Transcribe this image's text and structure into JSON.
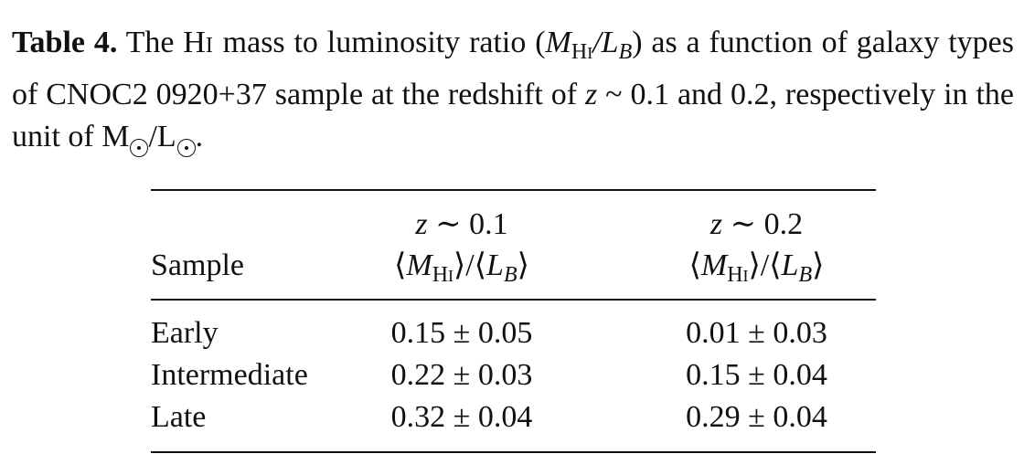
{
  "caption": {
    "label": "Table 4.",
    "part1": "The H",
    "hi_roman": "I",
    "part2": "mass to luminosity ratio (",
    "part3": ") as a function of galaxy types of CNOC2 0920+37 sample at the redshift of",
    "z": "z",
    "sim": "~",
    "part4": "0.1 and 0.2, respectively in the unit of M",
    "slash": "/L",
    "end": "."
  },
  "table": {
    "headers": {
      "sample": "Sample",
      "col_z1": "z ~ 0.1",
      "col_z2": "z ~ 0.2",
      "ratio_label": "⟨M_HI⟩/⟨L_B⟩"
    },
    "rows": [
      {
        "sample": "Early",
        "z01": "0.15 ± 0.05",
        "z02": "0.01 ± 0.03"
      },
      {
        "sample": "Intermediate",
        "z01": "0.22 ± 0.03",
        "z02": "0.15 ± 0.04"
      },
      {
        "sample": "Late",
        "z01": "0.32 ± 0.04",
        "z02": "0.29 ± 0.04"
      }
    ]
  }
}
